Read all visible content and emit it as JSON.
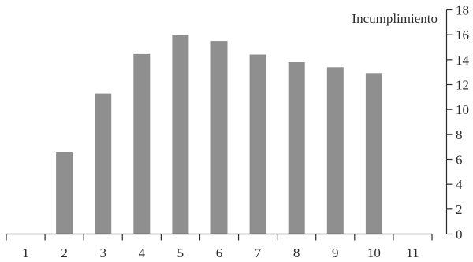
{
  "chart_data": {
    "type": "bar",
    "categories": [
      "1",
      "2",
      "3",
      "4",
      "5",
      "6",
      "7",
      "8",
      "9",
      "10",
      "11"
    ],
    "series": [
      {
        "values": [
          0,
          6.6,
          11.3,
          14.5,
          16.0,
          15.5,
          14.4,
          13.8,
          13.4,
          12.9,
          0
        ]
      }
    ],
    "title": "",
    "xlabel": "",
    "ylabel": "Incumplimiento",
    "ylim": [
      0,
      18
    ],
    "yticks": [
      0,
      2,
      4,
      6,
      8,
      10,
      12,
      14,
      16,
      18
    ],
    "y_axis_position": "right",
    "grid": false,
    "legend": "none",
    "colors": {
      "bar": "#8f8f8f",
      "axis": "#2b2b2b"
    }
  }
}
